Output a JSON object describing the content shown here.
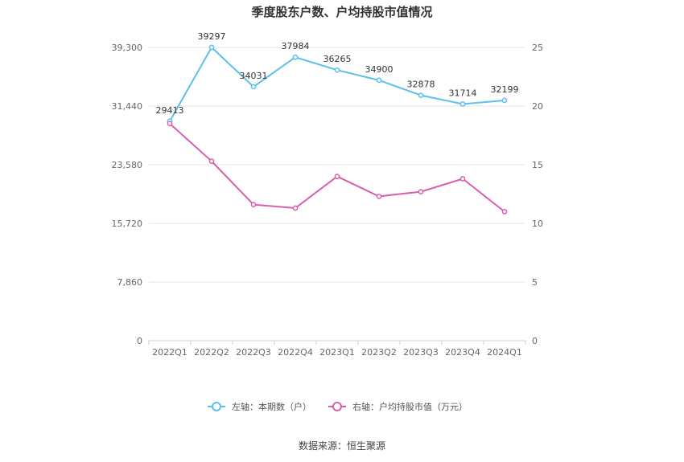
{
  "chart_data": {
    "type": "line",
    "title": "季度股东户数、户均持股市值情况",
    "categories": [
      "2022Q1",
      "2022Q2",
      "2022Q3",
      "2022Q4",
      "2023Q1",
      "2023Q2",
      "2023Q3",
      "2023Q4",
      "2024Q1"
    ],
    "y_left": {
      "ticks": [
        "0",
        "7,860",
        "15,720",
        "23,580",
        "31,440",
        "39,300"
      ],
      "min": 0,
      "max": 39300
    },
    "y_right": {
      "ticks": [
        "0",
        "5",
        "10",
        "15",
        "20",
        "25"
      ],
      "min": 0,
      "max": 25
    },
    "grid": true,
    "legend_position": "bottom",
    "series": [
      {
        "name": "左轴：本期数（户）",
        "axis": "left",
        "color": "#5bc0eb",
        "values": [
          29413,
          39297,
          34031,
          37984,
          36265,
          34900,
          32878,
          31714,
          32199
        ],
        "labels": [
          "29413",
          "39297",
          "34031",
          "37984",
          "36265",
          "34900",
          "32878",
          "31714",
          "32199"
        ]
      },
      {
        "name": "右轴：户均持股市值（万元）",
        "axis": "right",
        "color": "#d95fae",
        "values": [
          18.5,
          15.3,
          11.6,
          11.3,
          14.0,
          12.3,
          12.7,
          13.8,
          11.0
        ]
      }
    ],
    "source": "数据来源：恒生聚源"
  }
}
